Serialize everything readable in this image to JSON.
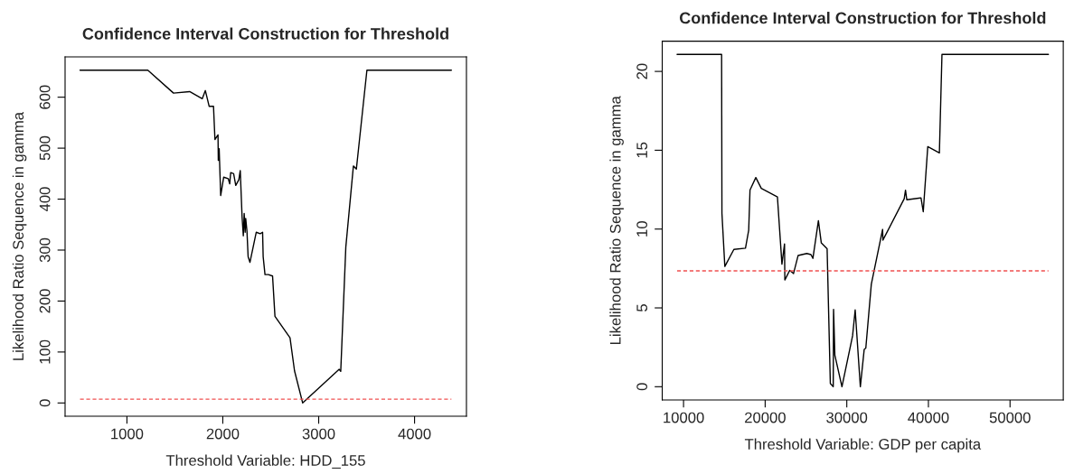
{
  "chart_data": [
    {
      "type": "line",
      "title": "Confidence Interval Construction for Threshold",
      "xlabel": "Threshold Variable: HDD_155",
      "ylabel": "Likelihood Ratio Sequence in gamma",
      "x": [
        511,
        1218,
        1486,
        1654,
        1786,
        1818,
        1858,
        1903,
        1918,
        1950,
        1953,
        1962,
        1978,
        2009,
        2057,
        2072,
        2082,
        2113,
        2135,
        2167,
        2182,
        2201,
        2214,
        2223,
        2233,
        2239,
        2252,
        2264,
        2283,
        2349,
        2390,
        2415,
        2421,
        2440,
        2475,
        2519,
        2544,
        2701,
        2748,
        2833,
        3214,
        3230,
        3283,
        3362,
        3393,
        3503,
        4384
      ],
      "series": [
        {
          "color": "#000000",
          "values": [
            653,
            653,
            608,
            611,
            597,
            613,
            582,
            582,
            517,
            526,
            476,
            499,
            407,
            443,
            440,
            430,
            452,
            450,
            427,
            438,
            456,
            365,
            328,
            372,
            335,
            362,
            337,
            287,
            276,
            335,
            332,
            335,
            287,
            252,
            252,
            249,
            170,
            128,
            63,
            0,
            66,
            62,
            306,
            465,
            459,
            653,
            653
          ]
        }
      ],
      "xlim": [
        355,
        4541
      ],
      "ylim": [
        -26,
        679
      ],
      "xticks": [
        1000,
        2000,
        3000,
        4000
      ],
      "yticks": [
        0,
        100,
        200,
        300,
        400,
        500,
        600
      ],
      "ref_lines": [
        {
          "axis": "y",
          "value": 7.35,
          "color": "#f05050",
          "line_style": "dashed"
        }
      ],
      "grid": false,
      "legend": false,
      "marker": "none",
      "line_style": "solid"
    },
    {
      "type": "line",
      "title": "Confidence Interval Construction for Threshold",
      "xlabel": "Threshold Variable: GDP per capita",
      "ylabel": "Likelihood Ratio Sequence in gamma",
      "x": [
        9209,
        14664,
        14704,
        15059,
        16166,
        17589,
        17984,
        18142,
        18854,
        19526,
        21502,
        22055,
        22372,
        22411,
        23004,
        23478,
        24032,
        25099,
        25613,
        25850,
        26522,
        26877,
        27589,
        27984,
        28340,
        28380,
        28538,
        29407,
        30711,
        31028,
        31660,
        32134,
        32332,
        33004,
        34387,
        34427,
        37036,
        37194,
        37352,
        39091,
        39368,
        39921,
        41344,
        41660,
        54704
      ],
      "series": [
        {
          "color": "#000000",
          "values": [
            21.08,
            21.08,
            11.0,
            7.63,
            8.71,
            8.79,
            9.94,
            12.47,
            13.27,
            12.58,
            12.04,
            7.77,
            9.06,
            6.77,
            7.38,
            7.18,
            8.32,
            8.45,
            8.38,
            8.14,
            10.53,
            9.12,
            8.75,
            0.2,
            0,
            4.91,
            2.0,
            0,
            3.23,
            4.87,
            0,
            2.37,
            2.45,
            6.5,
            9.98,
            9.3,
            11.92,
            12.47,
            11.86,
            11.98,
            11.1,
            15.23,
            14.83,
            21.08,
            21.08
          ]
        }
      ],
      "xlim": [
        7389,
        56520
      ],
      "ylim": [
        -0.84,
        21.92
      ],
      "xticks": [
        10000,
        20000,
        30000,
        40000,
        50000
      ],
      "yticks": [
        0,
        5,
        10,
        15,
        20
      ],
      "ref_lines": [
        {
          "axis": "y",
          "value": 7.35,
          "color": "#f05050",
          "line_style": "dashed"
        }
      ],
      "grid": false,
      "legend": false,
      "marker": "none",
      "line_style": "solid"
    }
  ]
}
